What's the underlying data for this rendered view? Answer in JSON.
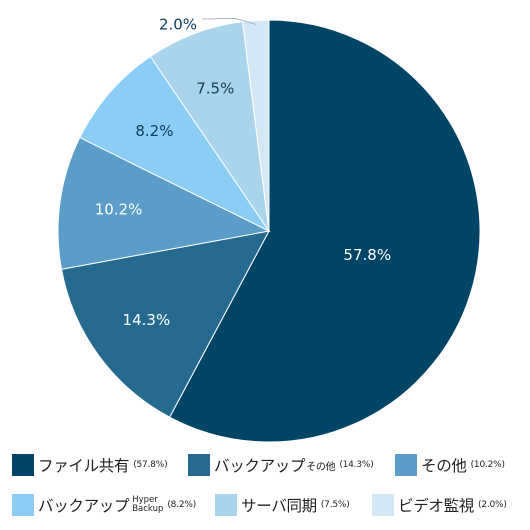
{
  "chart_data": {
    "type": "pie",
    "title": "",
    "slices": [
      {
        "name": "ファイル共有",
        "value": 57.8,
        "label": "57.8%",
        "color": "#004466",
        "label_color": "#ffffff"
      },
      {
        "name": "バックアップその他",
        "value": 14.3,
        "label": "14.3%",
        "color": "#276a90",
        "label_color": "#ffffff"
      },
      {
        "name": "その他",
        "value": 10.2,
        "label": "10.2%",
        "color": "#5c9cc8",
        "label_color": "#ffffff"
      },
      {
        "name": "バックアップ Hyper Backup",
        "value": 8.2,
        "label": "8.2%",
        "color": "#8ccdf5",
        "label_color": "#0b3d5c"
      },
      {
        "name": "サーバ同期",
        "value": 7.5,
        "label": "7.5%",
        "color": "#a9d4ec",
        "label_color": "#0b3d5c"
      },
      {
        "name": "ビデオ監視",
        "value": 2.0,
        "label": "2.0%",
        "color": "#d3e8f4",
        "label_color": "#0b3d5c"
      }
    ],
    "legend_placement": "bottom"
  },
  "legend": [
    {
      "main": "ファイル共有",
      "sub": "",
      "sub_lines": [],
      "pct": "(57.8%)",
      "color": "#004466"
    },
    {
      "main": "バックアップ",
      "sub": "その他",
      "sub_lines": [],
      "pct": "(14.3%)",
      "color": "#276a90"
    },
    {
      "main": "その他",
      "sub": "",
      "sub_lines": [],
      "pct": "(10.2%)",
      "color": "#5c9cc8"
    },
    {
      "main": "バックアップ",
      "sub": "",
      "sub_lines": [
        "Hyper",
        "Backup"
      ],
      "pct": "(8.2%)",
      "color": "#8ccdf5"
    },
    {
      "main": "サーバ同期",
      "sub": "",
      "sub_lines": [],
      "pct": "(7.5%)",
      "color": "#a9d4ec"
    },
    {
      "main": "ビデオ監視",
      "sub": "",
      "sub_lines": [],
      "pct": "(2.0%)",
      "color": "#d3e8f4"
    }
  ]
}
